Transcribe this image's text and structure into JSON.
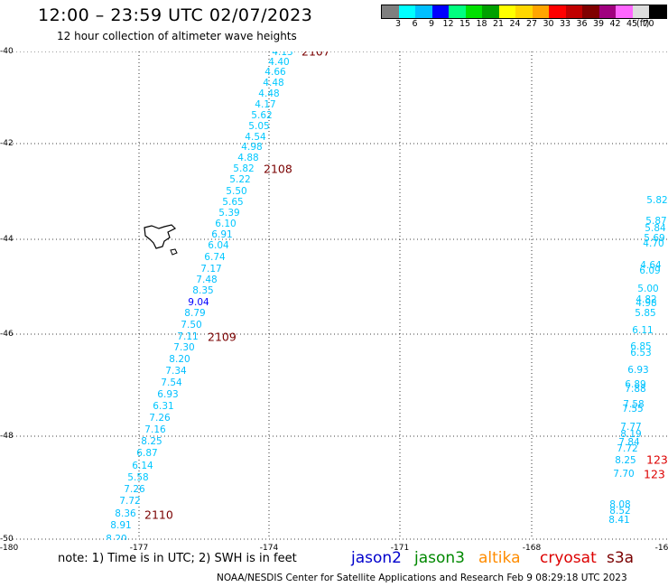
{
  "header": {
    "title": "12:00 – 23:59 UTC 02/07/2023",
    "subtitle": "12 hour collection of altimeter wave heights"
  },
  "colorbar": {
    "colors": [
      "#7f7f7f",
      "#00ffff",
      "#00bfff",
      "#0000ff",
      "#00ff7f",
      "#00e000",
      "#00a000",
      "#ffff00",
      "#ffd700",
      "#ffa500",
      "#ff0000",
      "#c00000",
      "#800000",
      "#a0007f",
      "#ff66ff",
      "#dddddd",
      "#000000"
    ],
    "labels": [
      "3",
      "6",
      "9",
      "12",
      "15",
      "18",
      "21",
      "24",
      "27",
      "30",
      "33",
      "36",
      "39",
      "42",
      "45",
      "70"
    ],
    "unit": "(ft)"
  },
  "map": {
    "lat_labels": [
      "-40",
      "-42",
      "-44",
      "-46",
      "-48",
      "-50"
    ],
    "lon_labels": [
      "-180",
      "-177",
      "-174",
      "-171",
      "-168",
      "-16"
    ],
    "observations": [
      {
        "v": "4.13"
      },
      {
        "v": "4.40"
      },
      {
        "v": "4.66"
      },
      {
        "v": "4.48"
      },
      {
        "v": "4.48"
      },
      {
        "v": "4.17"
      },
      {
        "v": "5.62"
      },
      {
        "v": "5.05"
      },
      {
        "v": "4.54"
      },
      {
        "v": "4.98"
      },
      {
        "v": "4.88"
      },
      {
        "v": "5.82"
      },
      {
        "v": "5.22"
      },
      {
        "v": "5.50"
      },
      {
        "v": "5.65"
      },
      {
        "v": "5.39"
      },
      {
        "v": "6.10"
      },
      {
        "v": "6.91"
      },
      {
        "v": "6.04"
      },
      {
        "v": "6.74"
      },
      {
        "v": "7.17"
      },
      {
        "v": "7.48"
      },
      {
        "v": "8.35"
      },
      {
        "v": "9.04"
      },
      {
        "v": "8.79"
      },
      {
        "v": "7.50"
      },
      {
        "v": "7.11"
      },
      {
        "v": "7.30"
      },
      {
        "v": "8.20"
      },
      {
        "v": "7.34"
      },
      {
        "v": "7.54"
      },
      {
        "v": "6.93"
      },
      {
        "v": "6.31"
      },
      {
        "v": "7.26"
      },
      {
        "v": "7.16"
      },
      {
        "v": "8.25"
      },
      {
        "v": "6.87"
      },
      {
        "v": "6.14"
      },
      {
        "v": "5.58"
      },
      {
        "v": "7.26"
      },
      {
        "v": "7.72"
      },
      {
        "v": "8.36"
      },
      {
        "v": "8.91"
      },
      {
        "v": "8.20"
      },
      {
        "v": "5.82"
      },
      {
        "v": "5.87"
      },
      {
        "v": "5.84"
      },
      {
        "v": "5.69"
      },
      {
        "v": "4.70"
      },
      {
        "v": "4.64"
      },
      {
        "v": "6.09"
      },
      {
        "v": "5.00"
      },
      {
        "v": "4.82"
      },
      {
        "v": "4.98"
      },
      {
        "v": "5.85"
      },
      {
        "v": "6.11"
      },
      {
        "v": "6.85"
      },
      {
        "v": "6.53"
      },
      {
        "v": "6.93"
      },
      {
        "v": "6.89"
      },
      {
        "v": "7.88"
      },
      {
        "v": "7.58"
      },
      {
        "v": "7.55"
      },
      {
        "v": "7.77"
      },
      {
        "v": "8.19"
      },
      {
        "v": "7.84"
      },
      {
        "v": "7.72"
      },
      {
        "v": "8.25"
      },
      {
        "v": "7.70"
      },
      {
        "v": "8.08"
      },
      {
        "v": "8.52"
      },
      {
        "v": "8.41"
      }
    ],
    "pass_labels": [
      "2107",
      "2108",
      "2109",
      "2110",
      "123",
      "123"
    ],
    "island": "New Zealand Chatham Islands"
  },
  "footer": {
    "note": "note: 1) Time is in UTC; 2) SWH is in feet",
    "satellites": [
      {
        "name": "jason2",
        "color": "#0000cc"
      },
      {
        "name": "jason3",
        "color": "#008800"
      },
      {
        "name": "altika",
        "color": "#ff8c00"
      },
      {
        "name": "cryosat",
        "color": "#dd0000"
      },
      {
        "name": "s3a",
        "color": "#7a0000"
      }
    ],
    "credit": "NOAA/NESDIS Center for Satellite Applications and Research   Feb  9 08:29:18 UTC 2023"
  }
}
